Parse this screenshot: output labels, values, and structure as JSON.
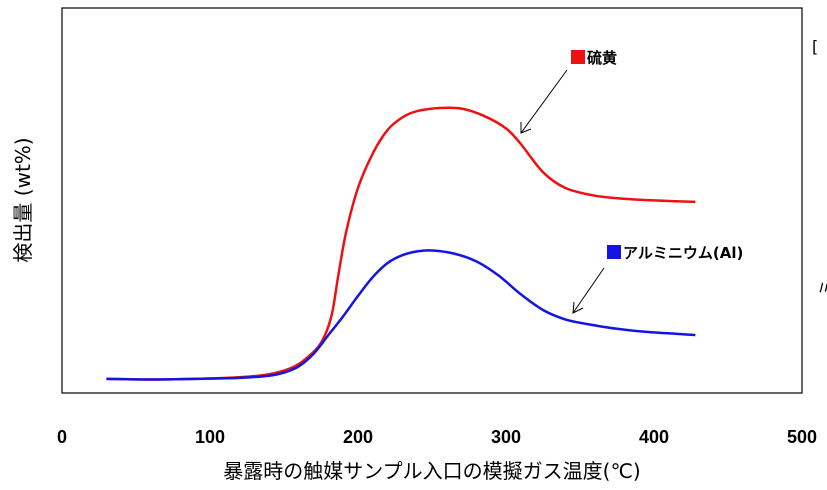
{
  "chart_data": {
    "type": "line",
    "title": "",
    "xlabel": "暴露時の触媒サンプル入口の模擬ガス温度(℃)",
    "ylabel": "検出量 (wt%)",
    "xlim": [
      0,
      500
    ],
    "ylim": [
      0,
      100
    ],
    "x_ticks": [
      "0",
      "100",
      "200",
      "300",
      "400",
      "500"
    ],
    "y_ticks_labeled": false,
    "grid": false,
    "series": [
      {
        "name": "硫黄",
        "color": "#ee1111",
        "x": [
          30,
          60,
          90,
          120,
          140,
          155,
          165,
          175,
          182,
          187,
          192,
          200,
          210,
          220,
          230,
          240,
          255,
          270,
          285,
          300,
          310,
          325,
          340,
          360,
          380,
          400,
          428
        ],
        "y": [
          1,
          0.8,
          1,
          1.5,
          2.5,
          4.5,
          7.5,
          12.5,
          21,
          35,
          48,
          62,
          73,
          80.5,
          84.5,
          86.5,
          87.5,
          87.3,
          85,
          81,
          76,
          67,
          62,
          59.5,
          58.5,
          58,
          57.5
        ]
      },
      {
        "name": "アルミニウム(Al)",
        "color": "#1414e6",
        "x": [
          30,
          60,
          90,
          120,
          140,
          150,
          160,
          170,
          180,
          190,
          200,
          210,
          220,
          230,
          240,
          250,
          265,
          280,
          295,
          310,
          325,
          340,
          355,
          375,
          395,
          428
        ],
        "y": [
          1,
          0.8,
          1,
          1.3,
          2,
          3,
          5,
          9,
          15,
          21,
          27.5,
          33.5,
          38,
          40.5,
          41.7,
          42,
          41,
          38.5,
          34,
          28,
          23,
          20,
          18.5,
          17,
          16,
          15
        ]
      }
    ],
    "legend": [
      {
        "label": "■硫黄",
        "position": "upper-middle-right",
        "marker_color": "#ee1111"
      },
      {
        "label": "■アルミニウム(Al)",
        "position": "middle-right",
        "marker_color": "#1414e6"
      }
    ],
    "annotations": [
      {
        "type": "arrow",
        "from": "硫黄 label",
        "to": "red curve near x≈308"
      },
      {
        "type": "arrow",
        "from": "アルミニウム(Al) label",
        "to": "blue curve near x≈342"
      }
    ]
  },
  "edge_fragments": [
    "[",
    "ミ"
  ]
}
